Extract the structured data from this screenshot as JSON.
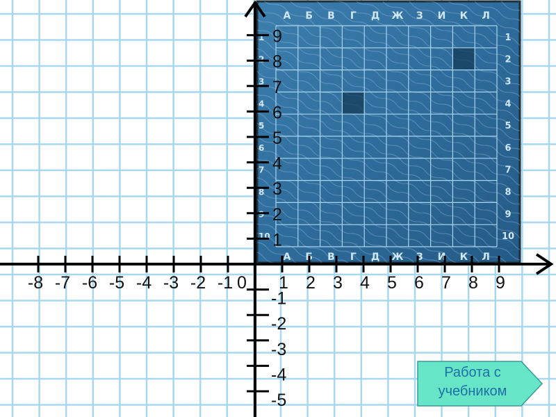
{
  "axes": {
    "origin_label": "0",
    "x_ticks": [
      "-8",
      "-7",
      "-6",
      "-5",
      "-4",
      "-3",
      "-2",
      "-1",
      "1",
      "2",
      "3",
      "4",
      "5",
      "6",
      "7",
      "8",
      "9"
    ],
    "y_ticks": [
      "9",
      "8",
      "7",
      "6",
      "5",
      "4",
      "3",
      "2",
      "1",
      "-1",
      "-2",
      "-3",
      "-4",
      "-5"
    ]
  },
  "board": {
    "columns": [
      "А",
      "Б",
      "В",
      "Г",
      "Д",
      "Ж",
      "З",
      "И",
      "К",
      "Л"
    ],
    "rows": [
      "1",
      "2",
      "3",
      "4",
      "5",
      "6",
      "7",
      "8",
      "9",
      "10"
    ],
    "shaded_cells": [
      {
        "col": "К",
        "row": "2"
      },
      {
        "col": "Г",
        "row": "4"
      }
    ],
    "water_color": "#2f6f9e",
    "grid_color": "#a9d4ef"
  },
  "paper_grid_color": "#a8d8f0",
  "nav_button": {
    "label_line1": "Работа с",
    "label_line2": "учебником",
    "fill": "#66e6c6",
    "text_color": "#1e6fa6"
  }
}
